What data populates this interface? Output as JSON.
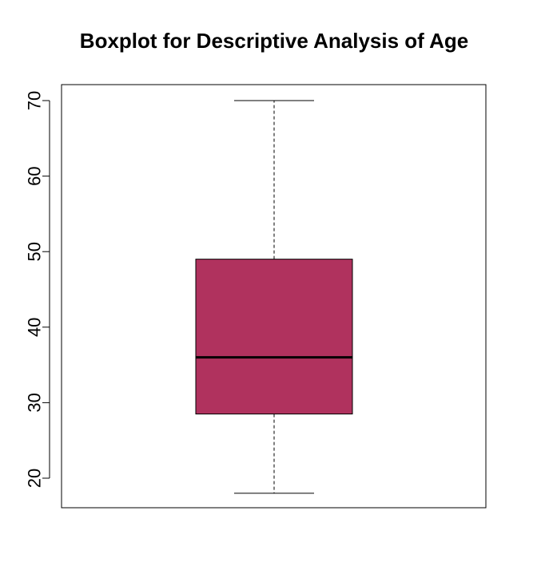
{
  "chart_data": {
    "type": "boxplot",
    "title": "Boxplot for Descriptive Analysis of Age",
    "xlabel": "",
    "ylabel": "",
    "ylim": [
      16,
      72
    ],
    "yticks": [
      20,
      30,
      40,
      50,
      60,
      70
    ],
    "ytick_labels": [
      "20",
      "30",
      "40",
      "50",
      "60",
      "70"
    ],
    "grid": false,
    "series": [
      {
        "min": 18,
        "q1": 28.5,
        "median": 36,
        "q3": 49,
        "max": 70
      }
    ],
    "colors": {
      "box_fill": "#b0325e",
      "box_stroke": "#000000",
      "median_line": "#000000",
      "whisker": "#000000",
      "frame": "#000000"
    }
  }
}
